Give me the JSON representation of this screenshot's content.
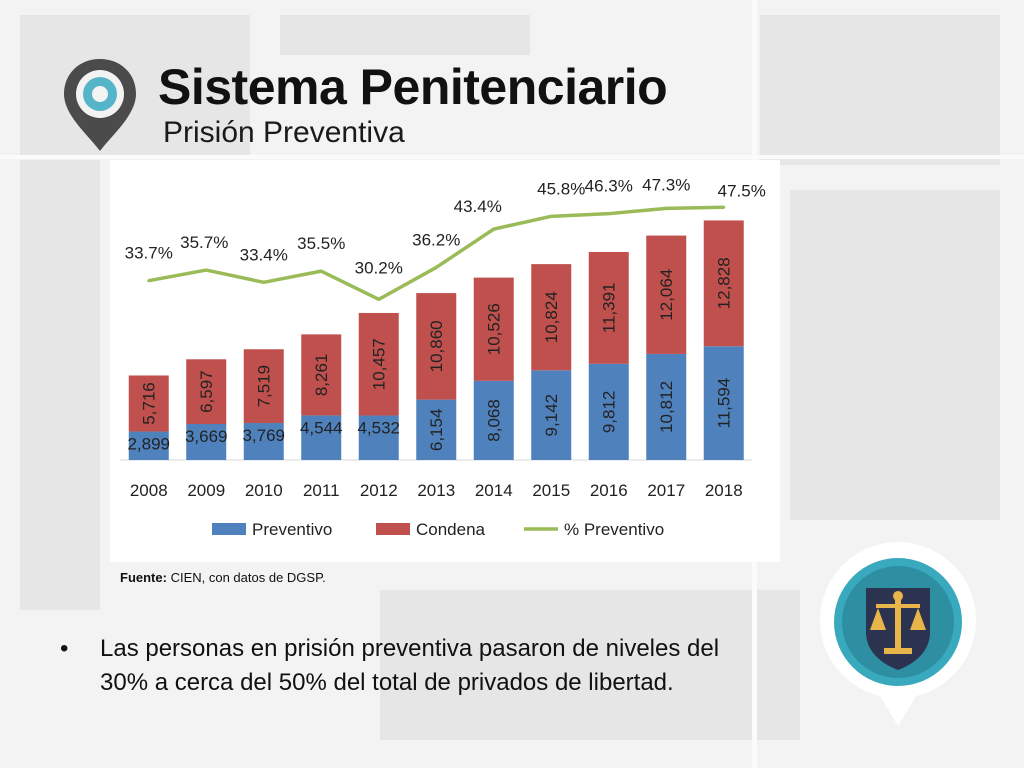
{
  "slide": {
    "title": "Sistema Penitenciario",
    "subtitle": "Prisión Preventiva",
    "source_label": "Fuente:",
    "source_text": " CIEN, con datos de DGSP.",
    "bullet": "Las personas en prisión preventiva pasaron de niveles del 30% a cerca del 50% del total de privados de libertad."
  },
  "colors": {
    "preventivo": "#4f81bd",
    "condena": "#c0504d",
    "line": "#9bbb59"
  },
  "chart_data": {
    "type": "bar",
    "stacked": true,
    "categories": [
      "2008",
      "2009",
      "2010",
      "2011",
      "2012",
      "2013",
      "2014",
      "2015",
      "2016",
      "2017",
      "2018"
    ],
    "series": [
      {
        "name": "Preventivo",
        "values": [
          2899,
          3669,
          3769,
          4544,
          4532,
          6154,
          8068,
          9142,
          9812,
          10812,
          11594
        ],
        "labels": [
          "2,899",
          "3,669",
          "3,769",
          "4,544",
          "4,532",
          "6,154",
          "8,068",
          "9,142",
          "9,812",
          "10,812",
          "11,594"
        ]
      },
      {
        "name": "Condena",
        "values": [
          5716,
          6597,
          7519,
          8261,
          10457,
          10860,
          10526,
          10824,
          11391,
          12064,
          12828
        ],
        "labels": [
          "5,716",
          "6,597",
          "7,519",
          "8,261",
          "10,457",
          "10,860",
          "10,526",
          "10,824",
          "11,391",
          "12,064",
          "12,828"
        ]
      }
    ],
    "line_series": {
      "name": "% Preventivo",
      "values": [
        33.7,
        35.7,
        33.4,
        35.5,
        30.2,
        36.2,
        43.4,
        45.8,
        46.3,
        47.3,
        47.5
      ],
      "labels": [
        "33.7%",
        "35.7%",
        "33.4%",
        "35.5%",
        "30.2%",
        "36.2%",
        "43.4%",
        "45.8%",
        "46.3%",
        "47.3%",
        "47.5%"
      ]
    },
    "legend": [
      "Preventivo",
      "Condena",
      "% Preventivo"
    ],
    "legend_position": "bottom"
  }
}
